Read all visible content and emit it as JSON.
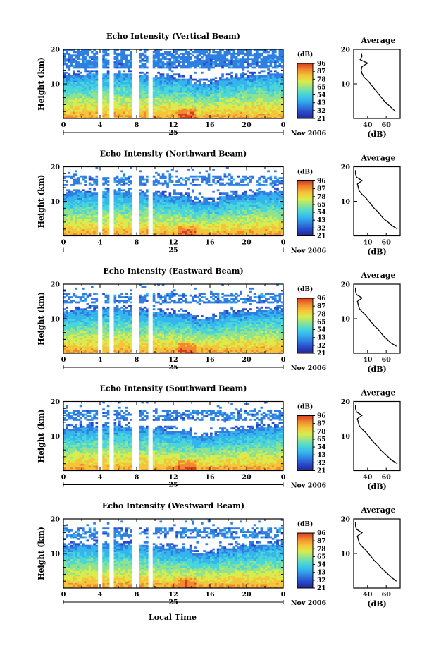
{
  "figure": {
    "xlabel": "Local Time",
    "date_month_year": "Nov 2006",
    "day_label": "25",
    "colorbar_unit": "(dB)",
    "colorbar_ticks": [
      "96",
      "87",
      "78",
      "65",
      "54",
      "43",
      "32",
      "21"
    ],
    "profile_title": "Average",
    "profile_xlabel": "(dB)",
    "ylabel": "Height (km)",
    "colors": {
      "colormap": [
        "#1f2a8c",
        "#2b47c9",
        "#2f7fe0",
        "#35b5ee",
        "#4ad6d8",
        "#8fe38f",
        "#d9ec4c",
        "#f4c53a",
        "#f08a2e",
        "#dc3a20"
      ],
      "data_gap": "#ffffff"
    }
  },
  "chart_data": [
    {
      "type": "heatmap",
      "title": "Echo Intensity (Vertical Beam)",
      "x_ticks": [
        "0",
        "4",
        "8",
        "12",
        "16",
        "20",
        "0"
      ],
      "xlim": [
        0,
        24
      ],
      "ylim": [
        0,
        20
      ],
      "y_ticks": [
        "20",
        "10"
      ],
      "zlim": [
        21,
        96
      ],
      "data_gaps_hours": [
        [
          3.8,
          4.2
        ],
        [
          5.1,
          5.5
        ],
        [
          7.4,
          8.2
        ],
        [
          9.3,
          9.7
        ]
      ],
      "profile": {
        "title": "Average",
        "xlabel": "(dB)",
        "x_ticks": [
          "40",
          "60"
        ],
        "heights_km": [
          2,
          3,
          4,
          5,
          6,
          7,
          8,
          9,
          10,
          11,
          12,
          13,
          14,
          15,
          16,
          17,
          18,
          19
        ],
        "values_db": [
          70,
          66,
          62,
          58,
          55,
          52,
          49,
          46,
          43,
          40,
          36,
          34,
          33,
          34,
          40,
          32,
          34,
          33
        ]
      }
    },
    {
      "type": "heatmap",
      "title": "Echo Intensity (Northward Beam)",
      "x_ticks": [
        "0",
        "4",
        "8",
        "12",
        "16",
        "20",
        "0"
      ],
      "xlim": [
        0,
        24
      ],
      "ylim": [
        0,
        20
      ],
      "y_ticks": [
        "20",
        "10"
      ],
      "zlim": [
        21,
        96
      ],
      "data_gaps_hours": [
        [
          3.8,
          4.2
        ],
        [
          5.1,
          5.5
        ],
        [
          7.4,
          8.2
        ],
        [
          9.3,
          9.7
        ]
      ],
      "profile": {
        "title": "Average",
        "xlabel": "(dB)",
        "x_ticks": [
          "40",
          "60"
        ],
        "heights_km": [
          2,
          3,
          4,
          5,
          6,
          7,
          8,
          9,
          10,
          11,
          12,
          13,
          14,
          15,
          16,
          17,
          18,
          19
        ],
        "values_db": [
          72,
          66,
          62,
          57,
          54,
          51,
          47,
          44,
          41,
          38,
          34,
          31,
          30,
          29,
          34,
          28,
          27,
          27
        ]
      }
    },
    {
      "type": "heatmap",
      "title": "Echo Intensity (Eastward Beam)",
      "x_ticks": [
        "0",
        "4",
        "8",
        "12",
        "16",
        "20",
        "0"
      ],
      "xlim": [
        0,
        24
      ],
      "ylim": [
        0,
        20
      ],
      "y_ticks": [
        "20",
        "10"
      ],
      "zlim": [
        21,
        96
      ],
      "data_gaps_hours": [
        [
          3.8,
          4.2
        ],
        [
          5.1,
          5.5
        ],
        [
          7.4,
          8.2
        ],
        [
          9.3,
          9.7
        ]
      ],
      "profile": {
        "title": "Average",
        "xlabel": "(dB)",
        "x_ticks": [
          "40",
          "60"
        ],
        "heights_km": [
          2,
          3,
          4,
          5,
          6,
          7,
          8,
          9,
          10,
          11,
          12,
          13,
          14,
          15,
          16,
          17,
          18,
          19
        ],
        "values_db": [
          71,
          65,
          61,
          57,
          54,
          51,
          47,
          44,
          41,
          38,
          34,
          31,
          30,
          29,
          34,
          28,
          27,
          27
        ]
      }
    },
    {
      "type": "heatmap",
      "title": "Echo Intensity (Southward Beam)",
      "x_ticks": [
        "0",
        "4",
        "8",
        "12",
        "16",
        "20",
        "0"
      ],
      "xlim": [
        0,
        24
      ],
      "ylim": [
        0,
        20
      ],
      "y_ticks": [
        "20",
        "10"
      ],
      "zlim": [
        21,
        96
      ],
      "data_gaps_hours": [
        [
          3.8,
          4.2
        ],
        [
          5.1,
          5.5
        ],
        [
          7.4,
          8.2
        ],
        [
          9.3,
          9.7
        ]
      ],
      "profile": {
        "title": "Average",
        "xlabel": "(dB)",
        "x_ticks": [
          "40",
          "60"
        ],
        "heights_km": [
          2,
          3,
          4,
          5,
          6,
          7,
          8,
          9,
          10,
          11,
          12,
          13,
          14,
          15,
          16,
          17,
          18,
          19
        ],
        "values_db": [
          72,
          66,
          62,
          58,
          54,
          51,
          47,
          44,
          41,
          38,
          34,
          31,
          30,
          29,
          34,
          28,
          27,
          27
        ]
      }
    },
    {
      "type": "heatmap",
      "title": "Echo Intensity (Westward Beam)",
      "x_ticks": [
        "0",
        "4",
        "8",
        "12",
        "16",
        "20",
        "0"
      ],
      "xlim": [
        0,
        24
      ],
      "ylim": [
        0,
        20
      ],
      "y_ticks": [
        "20",
        "10"
      ],
      "zlim": [
        21,
        96
      ],
      "data_gaps_hours": [
        [
          3.8,
          4.2
        ],
        [
          5.1,
          5.5
        ],
        [
          7.4,
          8.2
        ],
        [
          9.3,
          9.7
        ]
      ],
      "profile": {
        "title": "Average",
        "xlabel": "(dB)",
        "x_ticks": [
          "40",
          "60"
        ],
        "heights_km": [
          2,
          3,
          4,
          5,
          6,
          7,
          8,
          9,
          10,
          11,
          12,
          13,
          14,
          15,
          16,
          17,
          18,
          19
        ],
        "values_db": [
          71,
          66,
          62,
          58,
          54,
          51,
          47,
          44,
          41,
          38,
          34,
          31,
          30,
          29,
          34,
          28,
          27,
          27
        ]
      }
    }
  ]
}
